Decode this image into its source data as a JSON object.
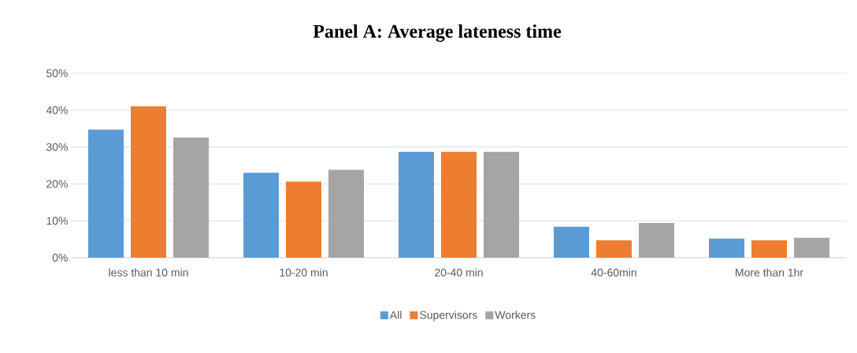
{
  "chart_data": {
    "type": "bar",
    "title": "Panel A: Average lateness time",
    "categories": [
      "less than 10 min",
      "10-20 min",
      "20-40 min",
      "40-60min",
      "More than 1hr"
    ],
    "series": [
      {
        "name": "All",
        "color": "#5b9bd5",
        "values": [
          34.7,
          23.0,
          28.7,
          8.4,
          5.2
        ]
      },
      {
        "name": "Supervisors",
        "color": "#ed7d31",
        "values": [
          41.1,
          20.6,
          28.7,
          4.7,
          4.7
        ]
      },
      {
        "name": "Workers",
        "color": "#a5a5a5",
        "values": [
          32.6,
          23.8,
          28.7,
          9.4,
          5.4
        ]
      }
    ],
    "ylim": [
      0,
      50
    ],
    "yticks": [
      {
        "value": 0,
        "label": "0%"
      },
      {
        "value": 10,
        "label": "10%"
      },
      {
        "value": 20,
        "label": "20%"
      },
      {
        "value": 30,
        "label": "30%"
      },
      {
        "value": 40,
        "label": "40%"
      },
      {
        "value": 50,
        "label": "50%"
      }
    ],
    "grid": "y",
    "legend": "bottom"
  }
}
